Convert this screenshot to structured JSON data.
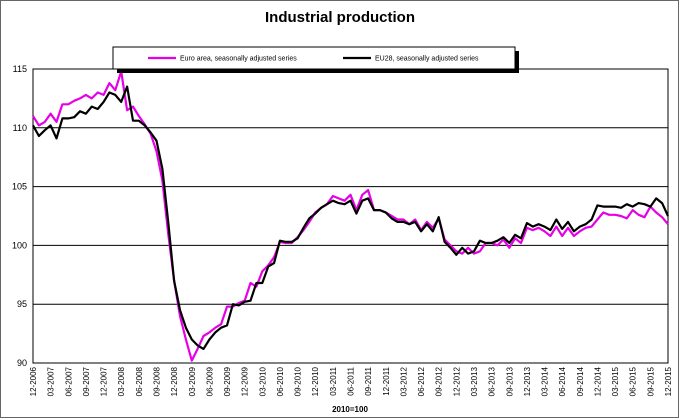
{
  "chart_data": {
    "type": "line",
    "title": "Industrial production",
    "x_label": "2010=100",
    "categories": [
      "12-2006",
      null,
      null,
      "03-2007",
      null,
      null,
      "06-2007",
      null,
      null,
      "09-2007",
      null,
      null,
      "12-2007",
      null,
      null,
      "03-2008",
      null,
      null,
      "06-2008",
      null,
      null,
      "09-2008",
      null,
      null,
      "12-2008",
      null,
      null,
      "03-2009",
      null,
      null,
      "06-2009",
      null,
      null,
      "09-2009",
      null,
      null,
      "12-2009",
      null,
      null,
      "03-2010",
      null,
      null,
      "06-2010",
      null,
      null,
      "09-2010",
      null,
      null,
      "12-2010",
      null,
      null,
      "03-2011",
      null,
      null,
      "06-2011",
      null,
      null,
      "09-2011",
      null,
      null,
      "12-2011",
      null,
      null,
      "03-2012",
      null,
      null,
      "06-2012",
      null,
      null,
      "09-2012",
      null,
      null,
      "12-2012",
      null,
      null,
      "03-2013",
      null,
      null,
      "06-2013",
      null,
      null,
      "09-2013",
      null,
      null,
      "12-2013",
      null,
      null,
      "03-2014",
      null,
      null,
      "06-2014",
      null,
      null,
      "09-2014",
      null,
      null,
      "12-2014",
      null,
      null,
      "03-2015",
      null,
      null,
      "06-2015",
      null,
      null,
      "09-2015",
      null,
      null,
      "12-2015"
    ],
    "series": [
      {
        "name": "Euro area, seasonally adjusted series",
        "color": "#e600e6",
        "values": [
          111,
          110.2,
          110.5,
          111.2,
          110.5,
          112,
          112,
          112.3,
          112.5,
          112.8,
          112.5,
          113,
          112.8,
          113.8,
          113.2,
          114.8,
          111.5,
          111.8,
          111,
          110.3,
          109.5,
          108,
          105.5,
          101,
          97,
          94,
          92,
          90.2,
          91.2,
          92.3,
          92.6,
          93,
          93.3,
          94.8,
          94.8,
          95.1,
          95.3,
          96.8,
          96.5,
          97.8,
          98.3,
          99,
          100.3,
          100.2,
          100.2,
          100.7,
          101.3,
          102,
          102.8,
          103.2,
          103.5,
          104.2,
          104,
          103.8,
          104.3,
          103,
          104.3,
          104.7,
          103,
          103,
          102.8,
          102.5,
          102.2,
          102.2,
          101.8,
          102.2,
          101.3,
          102,
          101.5,
          102.3,
          100.5,
          100,
          99.5,
          99.3,
          99.8,
          99.3,
          99.5,
          100.2,
          100.2,
          100,
          100.5,
          99.8,
          100.6,
          100.2,
          101.5,
          101.3,
          101.5,
          101.2,
          100.8,
          101.6,
          100.8,
          101.5,
          100.8,
          101.2,
          101.5,
          101.6,
          102.2,
          102.8,
          102.6,
          102.6,
          102.5,
          102.3,
          103,
          102.6,
          102.4,
          103.3,
          102.8,
          102.4,
          101.8
        ]
      },
      {
        "name": "EU28, seasonally adjusted series",
        "color": "#000000",
        "values": [
          110.2,
          109.3,
          109.8,
          110.2,
          109.1,
          110.8,
          110.8,
          110.9,
          111.4,
          111.2,
          111.8,
          111.6,
          112.2,
          113,
          112.8,
          112.2,
          113.5,
          110.6,
          110.6,
          110.2,
          109.6,
          108.9,
          106.5,
          102,
          97,
          94.5,
          93,
          92,
          91.5,
          91.2,
          92,
          92.6,
          93,
          93.2,
          95,
          94.9,
          95.2,
          95.3,
          96.8,
          96.8,
          98.2,
          98.5,
          100.4,
          100.3,
          100.3,
          100.6,
          101.5,
          102.3,
          102.7,
          103.2,
          103.5,
          103.8,
          103.6,
          103.5,
          103.8,
          102.7,
          103.8,
          104,
          103,
          103,
          102.8,
          102.3,
          102,
          102,
          101.8,
          102,
          101.2,
          101.8,
          101.2,
          102.4,
          100.3,
          99.8,
          99.2,
          99.8,
          99.3,
          99.5,
          100.4,
          100.2,
          100.2,
          100.4,
          100.7,
          100.2,
          100.9,
          100.6,
          101.9,
          101.6,
          101.8,
          101.6,
          101.3,
          102.2,
          101.4,
          102,
          101.2,
          101.6,
          101.8,
          102.2,
          103.4,
          103.3,
          103.3,
          103.3,
          103.2,
          103.5,
          103.3,
          103.6,
          103.5,
          103.3,
          104,
          103.6,
          102.5
        ]
      }
    ],
    "ylim": [
      90,
      115
    ],
    "yticks": [
      90,
      95,
      100,
      105,
      110,
      115
    ],
    "grid": true,
    "legend": "top"
  }
}
